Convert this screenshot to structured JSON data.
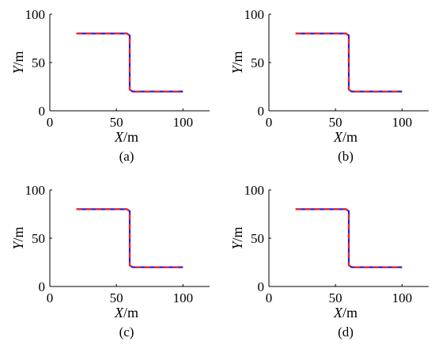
{
  "chart_data": [
    {
      "type": "line",
      "caption": "(a)",
      "xlabel": "X/m",
      "ylabel": "Y/m",
      "xlim": [
        0,
        120
      ],
      "ylim": [
        0,
        100
      ],
      "xticks": [
        0,
        50,
        100
      ],
      "yticks": [
        0,
        50,
        100
      ],
      "grid": false,
      "series": [
        {
          "color": "#1f1fe0",
          "dash": "solid",
          "x": [
            20,
            58,
            60,
            60,
            62,
            100
          ],
          "y": [
            80,
            80,
            78,
            22,
            20,
            20
          ]
        },
        {
          "color": "#e8202a",
          "dash": "dashed",
          "x": [
            20,
            58,
            60,
            60,
            62,
            100
          ],
          "y": [
            80,
            80,
            78,
            22,
            20,
            20
          ]
        }
      ]
    },
    {
      "type": "line",
      "caption": "(b)",
      "xlabel": "X/m",
      "ylabel": "Y/m",
      "xlim": [
        0,
        120
      ],
      "ylim": [
        0,
        100
      ],
      "xticks": [
        0,
        50,
        100
      ],
      "yticks": [
        0,
        50,
        100
      ],
      "grid": false,
      "series": [
        {
          "color": "#1f1fe0",
          "dash": "solid",
          "x": [
            20,
            58,
            60,
            60,
            62,
            100
          ],
          "y": [
            80,
            80,
            78,
            22,
            20,
            20
          ]
        },
        {
          "color": "#e8202a",
          "dash": "dashed",
          "x": [
            20,
            58,
            60,
            60,
            62,
            100
          ],
          "y": [
            80,
            80,
            78,
            22,
            20,
            20
          ]
        }
      ]
    },
    {
      "type": "line",
      "caption": "(c)",
      "xlabel": "X/m",
      "ylabel": "Y/m",
      "xlim": [
        0,
        120
      ],
      "ylim": [
        0,
        100
      ],
      "xticks": [
        0,
        50,
        100
      ],
      "yticks": [
        0,
        50,
        100
      ],
      "grid": false,
      "series": [
        {
          "color": "#1f1fe0",
          "dash": "solid",
          "x": [
            20,
            58,
            60,
            60,
            62,
            100
          ],
          "y": [
            80,
            80,
            78,
            22,
            20,
            20
          ]
        },
        {
          "color": "#e8202a",
          "dash": "dashed",
          "x": [
            20,
            58,
            60,
            60,
            62,
            100
          ],
          "y": [
            80,
            80,
            78,
            22,
            20,
            20
          ]
        }
      ]
    },
    {
      "type": "line",
      "caption": "(d)",
      "xlabel": "X/m",
      "ylabel": "Y/m",
      "xlim": [
        0,
        120
      ],
      "ylim": [
        0,
        100
      ],
      "xticks": [
        0,
        50,
        100
      ],
      "yticks": [
        0,
        50,
        100
      ],
      "grid": false,
      "series": [
        {
          "color": "#1f1fe0",
          "dash": "solid",
          "x": [
            20,
            58,
            60,
            60,
            62,
            100
          ],
          "y": [
            80,
            80,
            78,
            22,
            20,
            20
          ]
        },
        {
          "color": "#e8202a",
          "dash": "dashed",
          "x": [
            20,
            58,
            60,
            60,
            62,
            100
          ],
          "y": [
            80,
            80,
            78,
            22,
            20,
            20
          ]
        }
      ]
    }
  ]
}
